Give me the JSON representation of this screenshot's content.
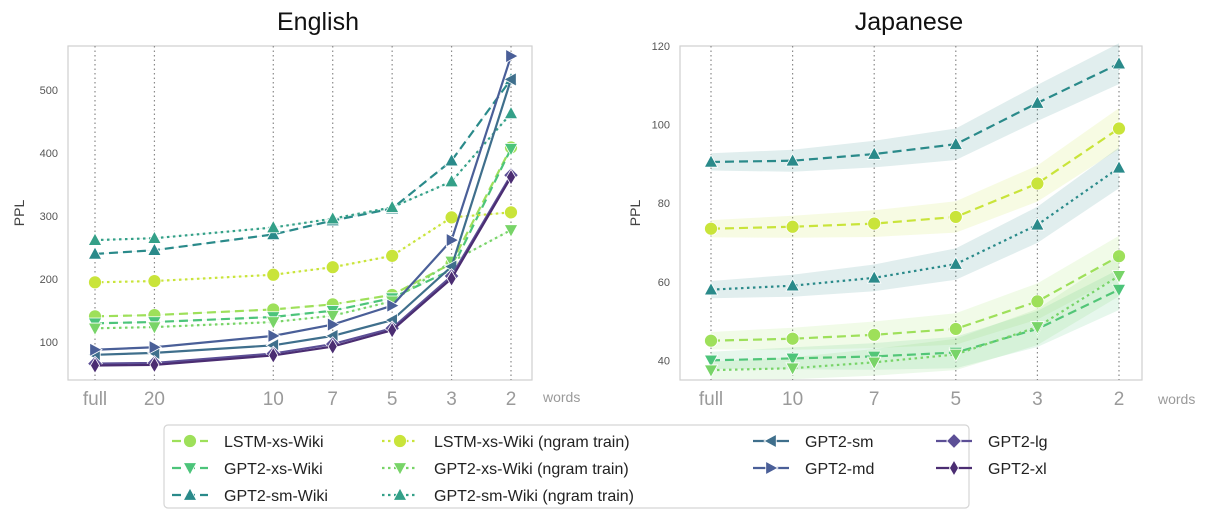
{
  "chart_data": [
    {
      "type": "line",
      "title": "English",
      "ylabel": "PPL",
      "xlabel": "words",
      "x": [
        "full",
        "20",
        "10",
        "7",
        "5",
        "3",
        "2"
      ],
      "x_positions": [
        0,
        1,
        3,
        4,
        5,
        6,
        7
      ],
      "ylim": [
        40,
        570
      ],
      "yticks": [
        100,
        200,
        300,
        400,
        500
      ],
      "grid": "vertical dotted",
      "series": [
        {
          "name": "LSTM-xs-Wiki",
          "color": "#9ee05a",
          "dash": "dashed",
          "marker": "circle",
          "values": [
            141,
            143,
            152,
            160,
            175,
            225,
            409
          ]
        },
        {
          "name": "GPT2-xs-Wiki",
          "color": "#4cc47a",
          "dash": "dashed",
          "marker": "triangle-down",
          "values": [
            130,
            132,
            140,
            150,
            170,
            215,
            407
          ]
        },
        {
          "name": "GPT2-sm-Wiki",
          "color": "#2a8a8a",
          "dash": "dashed",
          "marker": "triangle-up",
          "values": [
            240,
            246,
            271,
            293,
            312,
            388,
            517
          ]
        },
        {
          "name": "LSTM-xs-Wiki (ngram train)",
          "color": "#c9e43a",
          "dash": "dotted",
          "marker": "circle",
          "values": [
            195,
            197,
            207,
            219,
            237,
            298,
            306
          ]
        },
        {
          "name": "GPT2-xs-Wiki (ngram train)",
          "color": "#78d468",
          "dash": "dotted",
          "marker": "triangle-down",
          "values": [
            122,
            124,
            132,
            142,
            165,
            228,
            278
          ]
        },
        {
          "name": "GPT2-sm-Wiki (ngram train)",
          "color": "#34a088",
          "dash": "dotted",
          "marker": "triangle-up",
          "values": [
            262,
            265,
            282,
            296,
            314,
            355,
            463
          ]
        },
        {
          "name": "GPT2-sm",
          "color": "#3f6f8c",
          "dash": "solid",
          "marker": "triangle-left",
          "values": [
            80,
            83,
            95,
            110,
            135,
            220,
            517
          ]
        },
        {
          "name": "GPT2-md",
          "color": "#4a5f98",
          "dash": "solid",
          "marker": "triangle-right",
          "values": [
            88,
            92,
            110,
            128,
            158,
            262,
            554
          ]
        },
        {
          "name": "GPT2-lg",
          "color": "#5c4f96",
          "dash": "solid",
          "marker": "diamond",
          "values": [
            66,
            67,
            82,
            97,
            122,
            205,
            365
          ]
        },
        {
          "name": "GPT2-xl",
          "color": "#4b2d72",
          "dash": "solid",
          "marker": "thin-diamond",
          "values": [
            63,
            64,
            79,
            93,
            119,
            201,
            362
          ]
        }
      ]
    },
    {
      "type": "line",
      "title": "Japanese",
      "ylabel": "PPL",
      "xlabel": "words",
      "x": [
        "full",
        "10",
        "7",
        "5",
        "3",
        "2"
      ],
      "x_positions": [
        0,
        1,
        2,
        3,
        4,
        5
      ],
      "ylim": [
        35,
        120
      ],
      "yticks": [
        40,
        60,
        80,
        100,
        120
      ],
      "grid": "vertical dotted",
      "series": [
        {
          "name": "LSTM-xs-Wiki",
          "color": "#9ee05a",
          "dash": "dashed",
          "marker": "circle",
          "values": [
            45,
            45.5,
            46.5,
            48,
            55,
            66.5
          ]
        },
        {
          "name": "GPT2-xs-Wiki",
          "color": "#4cc47a",
          "dash": "dashed",
          "marker": "triangle-down",
          "values": [
            40,
            40.5,
            41,
            42,
            48,
            58
          ]
        },
        {
          "name": "GPT2-sm-Wiki",
          "color": "#2a8a8a",
          "dash": "dashed",
          "marker": "triangle-up",
          "values": [
            90.5,
            90.8,
            92.5,
            95,
            105.5,
            115.5
          ]
        },
        {
          "name": "LSTM-xs-Wiki (ngram train)",
          "color": "#c9e43a",
          "dash": "dashed",
          "marker": "circle",
          "values": [
            73.5,
            74,
            74.8,
            76.5,
            85,
            99
          ]
        },
        {
          "name": "GPT2-xs-Wiki (ngram train)",
          "color": "#78d468",
          "dash": "dotted",
          "marker": "triangle-down",
          "values": [
            37.5,
            38,
            39.5,
            41.5,
            48.5,
            61.5
          ]
        },
        {
          "name": "GPT2-sm-Wiki (ngram train)",
          "color": "#2a8a8a",
          "dash": "dotted",
          "marker": "triangle-up",
          "values": [
            58,
            59,
            61,
            64.5,
            74.5,
            89
          ]
        }
      ]
    }
  ],
  "legend": {
    "entries": [
      "LSTM-xs-Wiki",
      "GPT2-xs-Wiki",
      "GPT2-sm-Wiki",
      "LSTM-xs-Wiki (ngram train)",
      "GPT2-xs-Wiki (ngram train)",
      "GPT2-sm-Wiki (ngram train)",
      "GPT2-sm",
      "GPT2-md",
      "GPT2-lg",
      "GPT2-xl"
    ],
    "placement": "bottom-center"
  }
}
